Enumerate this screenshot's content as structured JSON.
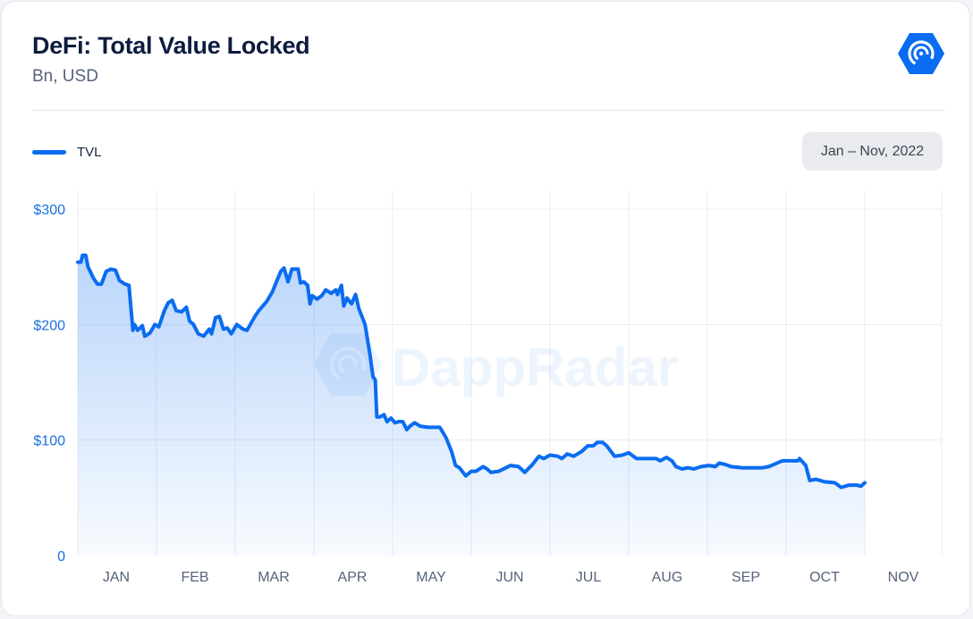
{
  "header": {
    "title": "DeFi: Total Value Locked",
    "subtitle": "Bn, USD",
    "logo_icon": "dappradar-logo-icon"
  },
  "legend": {
    "label": "TVL",
    "color": "#0a6cf0"
  },
  "range_button": {
    "label": "Jan – Nov, 2022"
  },
  "watermark": {
    "text": "DappRadar",
    "icon": "dappradar-logo-icon"
  },
  "colors": {
    "accent": "#0a6cf0",
    "y_tick": "#1a6fe0",
    "x_tick": "#56637a",
    "grid": "#e9edf2"
  },
  "chart_data": {
    "type": "area",
    "title": "DeFi: Total Value Locked",
    "subtitle": "Bn, USD",
    "ylabel": "",
    "xlabel": "",
    "ylim": [
      0,
      300
    ],
    "xlim": [
      0,
      11
    ],
    "grid": true,
    "legend_position": "top-left",
    "y_ticks": [
      {
        "value": 0,
        "label": "0"
      },
      {
        "value": 100,
        "label": "$100"
      },
      {
        "value": 200,
        "label": "$200"
      },
      {
        "value": 300,
        "label": "$300"
      }
    ],
    "x_ticks": [
      "JAN",
      "FEB",
      "MAR",
      "APR",
      "MAY",
      "JUN",
      "JUL",
      "AUG",
      "SEP",
      "OCT",
      "NOV"
    ],
    "x_unit": "months since Jan 1, 2022",
    "series": [
      {
        "name": "TVL",
        "color": "#0a6cf0",
        "points": [
          [
            0.0,
            254
          ],
          [
            0.04,
            254
          ],
          [
            0.06,
            260
          ],
          [
            0.1,
            260
          ],
          [
            0.13,
            250
          ],
          [
            0.2,
            240
          ],
          [
            0.25,
            235
          ],
          [
            0.3,
            235
          ],
          [
            0.36,
            246
          ],
          [
            0.42,
            248
          ],
          [
            0.48,
            247
          ],
          [
            0.53,
            238
          ],
          [
            0.6,
            235
          ],
          [
            0.65,
            234
          ],
          [
            0.7,
            195
          ],
          [
            0.72,
            200
          ],
          [
            0.76,
            195
          ],
          [
            0.82,
            199
          ],
          [
            0.85,
            190
          ],
          [
            0.88,
            191
          ],
          [
            0.92,
            193
          ],
          [
            0.98,
            200
          ],
          [
            1.03,
            198
          ],
          [
            1.1,
            212
          ],
          [
            1.15,
            219
          ],
          [
            1.2,
            221
          ],
          [
            1.25,
            212
          ],
          [
            1.32,
            211
          ],
          [
            1.38,
            215
          ],
          [
            1.42,
            203
          ],
          [
            1.47,
            200
          ],
          [
            1.53,
            192
          ],
          [
            1.6,
            190
          ],
          [
            1.67,
            196
          ],
          [
            1.7,
            192
          ],
          [
            1.75,
            206
          ],
          [
            1.8,
            207
          ],
          [
            1.85,
            196
          ],
          [
            1.9,
            197
          ],
          [
            1.95,
            192
          ],
          [
            2.02,
            200
          ],
          [
            2.1,
            196
          ],
          [
            2.15,
            195
          ],
          [
            2.25,
            207
          ],
          [
            2.3,
            212
          ],
          [
            2.4,
            220
          ],
          [
            2.47,
            228
          ],
          [
            2.53,
            238
          ],
          [
            2.58,
            246
          ],
          [
            2.62,
            249
          ],
          [
            2.67,
            237
          ],
          [
            2.72,
            248
          ],
          [
            2.8,
            248
          ],
          [
            2.83,
            236
          ],
          [
            2.87,
            237
          ],
          [
            2.92,
            234
          ],
          [
            2.95,
            218
          ],
          [
            2.98,
            225
          ],
          [
            3.04,
            222
          ],
          [
            3.1,
            225
          ],
          [
            3.15,
            230
          ],
          [
            3.22,
            227
          ],
          [
            3.28,
            230
          ],
          [
            3.3,
            226
          ],
          [
            3.35,
            234
          ],
          [
            3.38,
            216
          ],
          [
            3.42,
            223
          ],
          [
            3.48,
            218
          ],
          [
            3.53,
            226
          ],
          [
            3.57,
            214
          ],
          [
            3.65,
            200
          ],
          [
            3.71,
            175
          ],
          [
            3.75,
            155
          ],
          [
            3.78,
            152
          ],
          [
            3.8,
            120
          ],
          [
            3.84,
            120
          ],
          [
            3.89,
            122
          ],
          [
            3.93,
            116
          ],
          [
            3.98,
            119
          ],
          [
            4.03,
            115
          ],
          [
            4.08,
            116
          ],
          [
            4.13,
            116
          ],
          [
            4.18,
            109
          ],
          [
            4.22,
            112
          ],
          [
            4.28,
            115
          ],
          [
            4.35,
            112
          ],
          [
            4.45,
            111
          ],
          [
            4.6,
            111
          ],
          [
            4.68,
            102
          ],
          [
            4.75,
            90
          ],
          [
            4.8,
            78
          ],
          [
            4.85,
            76
          ],
          [
            4.93,
            69
          ],
          [
            5.0,
            73
          ],
          [
            5.06,
            73
          ],
          [
            5.15,
            77
          ],
          [
            5.2,
            75
          ],
          [
            5.25,
            72
          ],
          [
            5.35,
            73
          ],
          [
            5.5,
            78
          ],
          [
            5.6,
            77
          ],
          [
            5.68,
            72
          ],
          [
            5.78,
            79
          ],
          [
            5.86,
            86
          ],
          [
            5.92,
            84
          ],
          [
            6.0,
            87
          ],
          [
            6.1,
            86
          ],
          [
            6.15,
            84
          ],
          [
            6.22,
            88
          ],
          [
            6.3,
            86
          ],
          [
            6.4,
            90
          ],
          [
            6.48,
            95
          ],
          [
            6.55,
            95
          ],
          [
            6.6,
            98
          ],
          [
            6.67,
            98
          ],
          [
            6.72,
            95
          ],
          [
            6.82,
            86
          ],
          [
            6.92,
            87
          ],
          [
            7.0,
            89
          ],
          [
            7.1,
            84
          ],
          [
            7.22,
            84
          ],
          [
            7.35,
            84
          ],
          [
            7.4,
            82
          ],
          [
            7.48,
            85
          ],
          [
            7.55,
            82
          ],
          [
            7.6,
            77
          ],
          [
            7.68,
            75
          ],
          [
            7.75,
            76
          ],
          [
            7.83,
            75
          ],
          [
            7.92,
            77
          ],
          [
            8.02,
            78
          ],
          [
            8.1,
            77
          ],
          [
            8.15,
            80
          ],
          [
            8.22,
            79
          ],
          [
            8.3,
            77
          ],
          [
            8.45,
            76
          ],
          [
            8.7,
            76
          ],
          [
            8.78,
            77
          ],
          [
            8.85,
            79
          ],
          [
            8.95,
            82
          ],
          [
            9.05,
            82
          ],
          [
            9.15,
            82
          ],
          [
            9.17,
            84
          ],
          [
            9.25,
            78
          ],
          [
            9.3,
            65
          ],
          [
            9.38,
            66
          ],
          [
            9.48,
            64
          ],
          [
            9.62,
            63
          ],
          [
            9.7,
            59
          ],
          [
            9.8,
            61
          ],
          [
            9.9,
            61
          ],
          [
            9.95,
            60
          ],
          [
            10.0,
            63
          ]
        ]
      }
    ]
  }
}
